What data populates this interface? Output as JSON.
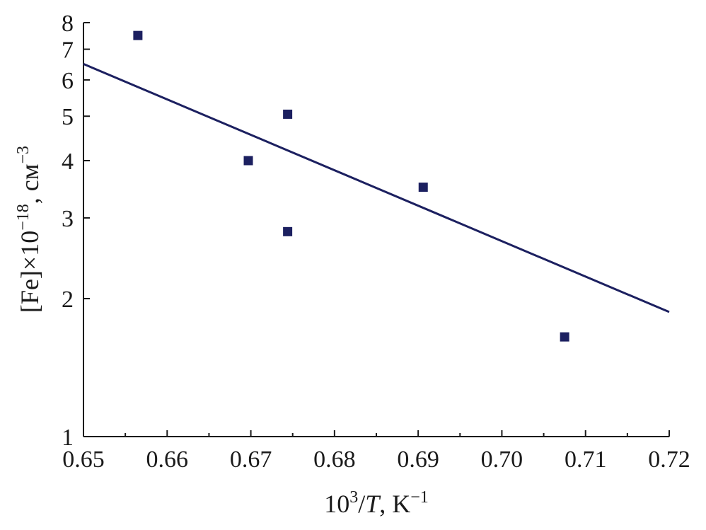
{
  "chart_data": {
    "type": "scatter",
    "xlabel": {
      "base": "10",
      "exp": "3",
      "rest": "/",
      "var": "T",
      "after": ", K",
      "unit_exp": "−1"
    },
    "ylabel": {
      "text": "[Fe]×10",
      "exp": "−18",
      "after": ", см",
      "unit_exp": "−3"
    },
    "xlim": [
      0.65,
      0.72
    ],
    "ylim": [
      1,
      8
    ],
    "yscale": "log",
    "x_ticks": [
      "0.65",
      "0.66",
      "0.67",
      "0.68",
      "0.69",
      "0.70",
      "0.71",
      "0.72"
    ],
    "y_ticks": [
      "1",
      "2",
      "3",
      "4",
      "5",
      "6",
      "7",
      "8"
    ],
    "grid": false,
    "legend": "none",
    "colors": {
      "series": "#1c2060",
      "axes": "#1a1a1a"
    },
    "series": [
      {
        "kind": "points",
        "x": [
          0.6565,
          0.6697,
          0.6744,
          0.6744,
          0.6906,
          0.7075
        ],
        "y": [
          7.5,
          4.0,
          5.05,
          2.8,
          3.5,
          1.65
        ]
      },
      {
        "kind": "fit-line",
        "x": [
          0.65,
          0.72
        ],
        "y": [
          6.5,
          1.87
        ]
      }
    ]
  }
}
